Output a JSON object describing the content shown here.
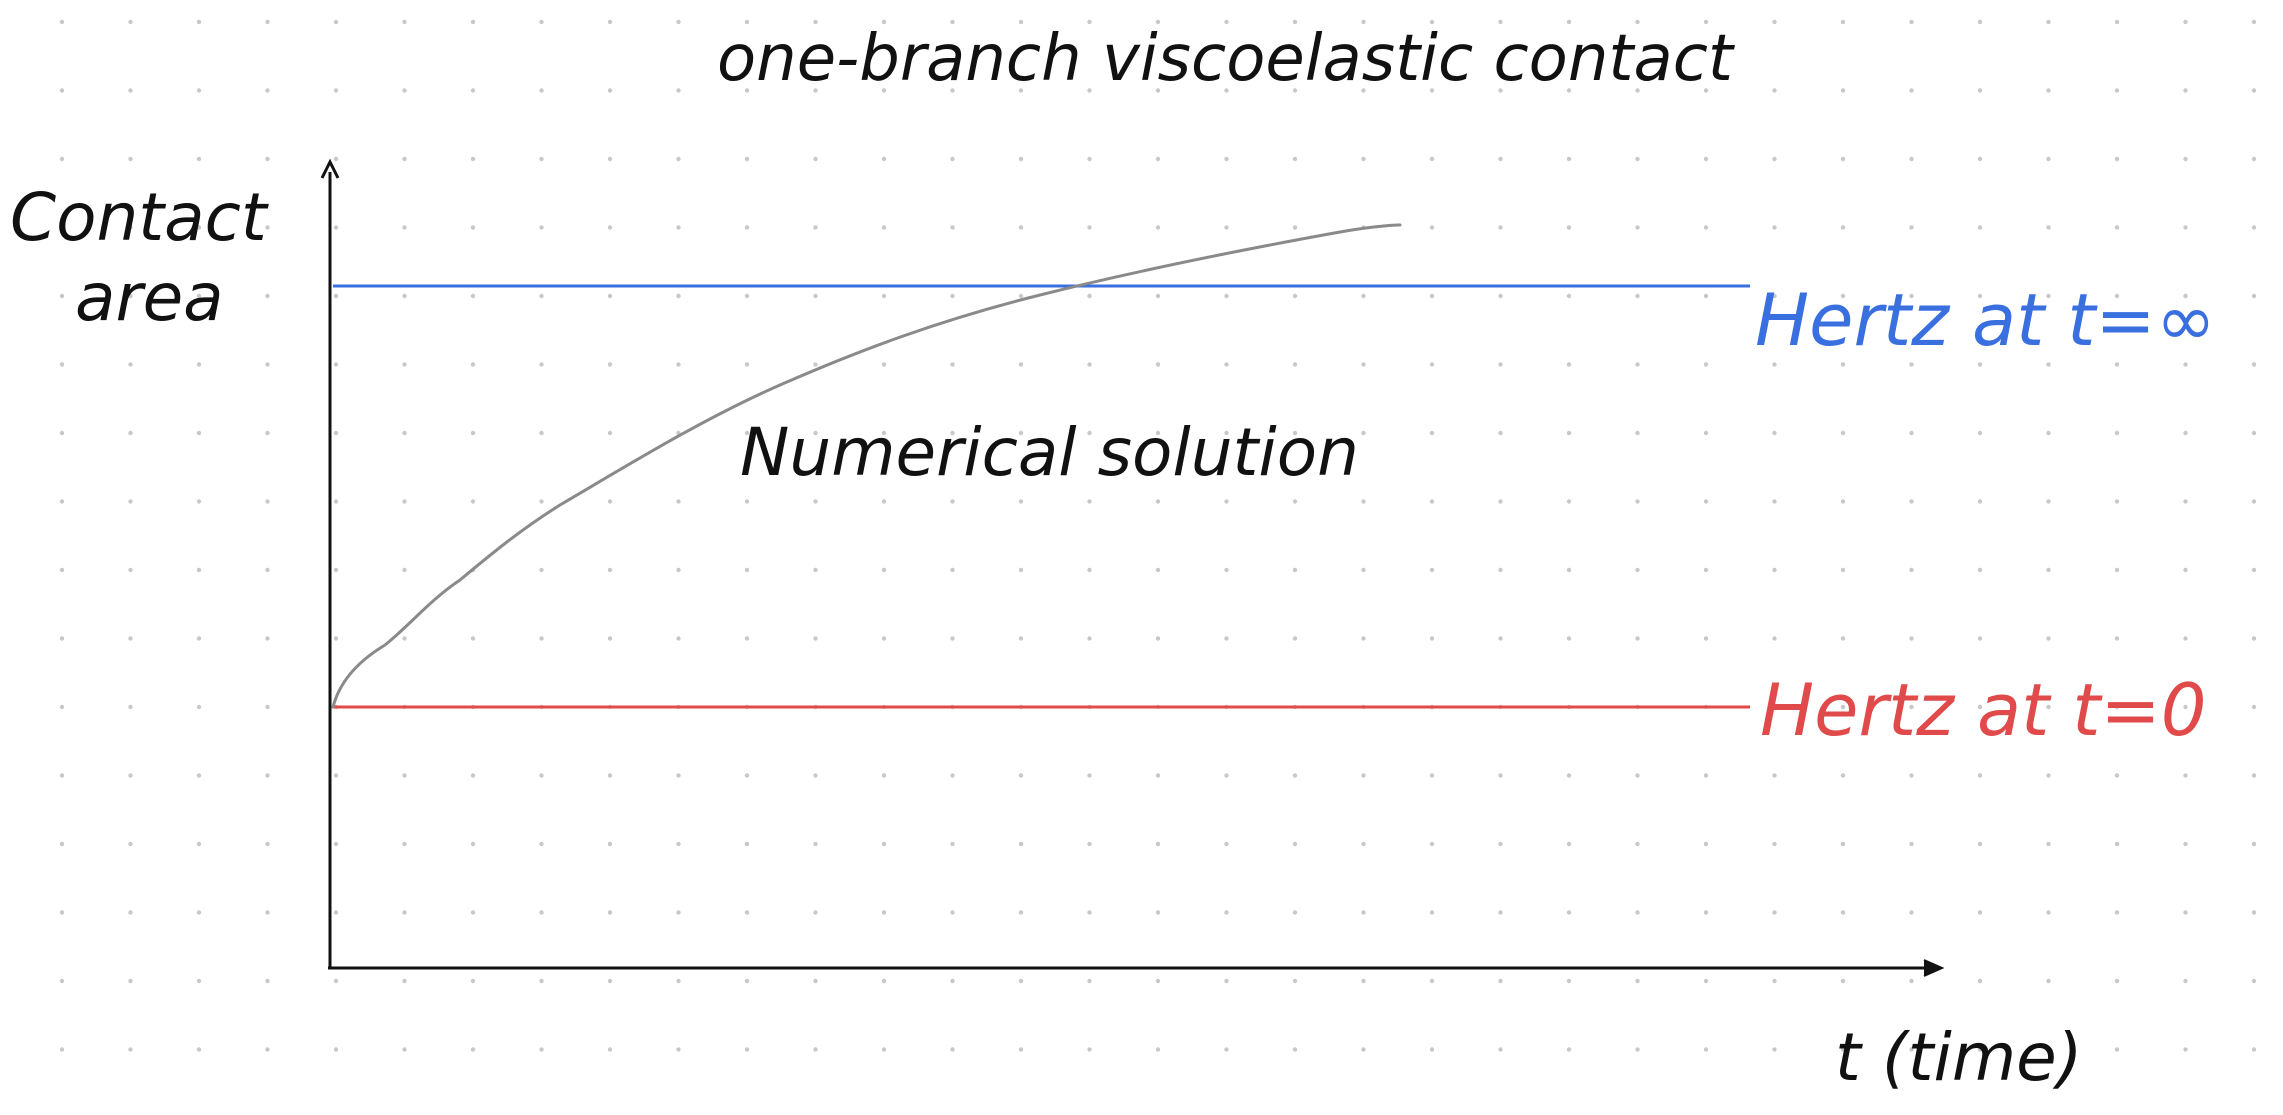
{
  "title": "one-branch viscoelastic contact",
  "y_axis_label_line1": "Contact",
  "y_axis_label_line2": "area",
  "x_axis_label": "t (time)",
  "curve_label": "Numerical solution",
  "upper_line_label": "Hertz at t=∞",
  "lower_line_label": "Hertz at t=0",
  "colors": {
    "upper_line": "#3a6fe0",
    "lower_line": "#e04a4a",
    "curve": "#8a8a8a",
    "ink": "#111111",
    "grid_dot": "#c8c8c8"
  }
}
